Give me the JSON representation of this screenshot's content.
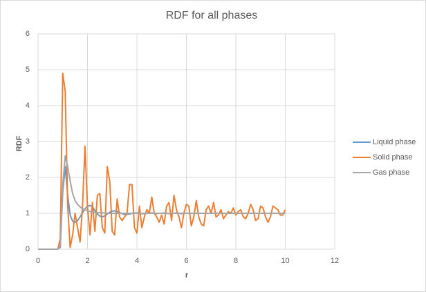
{
  "chart_data": {
    "type": "line",
    "title": "RDF for all phases",
    "x_label": "r",
    "y_label": "RDF",
    "x": [
      0,
      0.1,
      0.2,
      0.3,
      0.4,
      0.5,
      0.6,
      0.7,
      0.8,
      0.9,
      1,
      1.1,
      1.2,
      1.3,
      1.4,
      1.5,
      1.6,
      1.7,
      1.8,
      1.9,
      2,
      2.1,
      2.2,
      2.3,
      2.4,
      2.5,
      2.6,
      2.7,
      2.8,
      2.9,
      3,
      3.1,
      3.2,
      3.3,
      3.4,
      3.5,
      3.6,
      3.7,
      3.8,
      3.9,
      4,
      4.1,
      4.2,
      4.3,
      4.4,
      4.5,
      4.6,
      4.7,
      4.8,
      4.9,
      5,
      5.1,
      5.2,
      5.3,
      5.4,
      5.5,
      5.6,
      5.7,
      5.8,
      5.9,
      6,
      6.1,
      6.2,
      6.3,
      6.4,
      6.5,
      6.6,
      6.7,
      6.8,
      6.9,
      7,
      7.1,
      7.2,
      7.3,
      7.4,
      7.5,
      7.6,
      7.7,
      7.8,
      7.9,
      8,
      8.1,
      8.2,
      8.3,
      8.4,
      8.5,
      8.6,
      8.7,
      8.8,
      8.9,
      9,
      9.1,
      9.2,
      9.3,
      9.4,
      9.5,
      9.6,
      9.7,
      9.8,
      9.9,
      10
    ],
    "series": [
      {
        "name": "Liquid phase",
        "color": "#5b9bd5",
        "values": [
          0,
          0,
          0,
          0,
          0,
          0,
          0,
          0,
          0,
          0.05,
          1.6,
          2.3,
          1.5,
          0.95,
          0.78,
          0.75,
          0.8,
          0.9,
          1.02,
          1.12,
          1.2,
          1.22,
          1.18,
          1.08,
          0.98,
          0.92,
          0.9,
          0.93,
          0.98,
          1.03,
          1.06,
          1.07,
          1.05,
          1.02,
          0.99,
          0.97,
          0.97,
          0.98,
          1,
          1.01,
          1.01,
          1,
          0.99,
          0.99,
          1,
          1.01,
          1.01,
          1,
          0.99,
          1,
          1,
          1.01,
          1,
          0.99,
          1,
          1,
          1.01,
          1,
          0.99,
          1,
          1,
          1,
          1,
          1,
          1,
          1,
          1,
          1,
          1,
          1,
          1,
          1,
          1,
          1,
          1,
          1,
          1,
          1,
          1,
          1,
          1,
          1,
          1,
          1,
          1,
          1,
          1,
          1,
          1,
          1,
          1,
          1,
          1,
          1,
          1,
          1,
          1,
          1,
          1,
          1,
          1
        ]
      },
      {
        "name": "Solid phase",
        "color": "#ed7d31",
        "values": [
          0,
          0,
          0,
          0,
          0,
          0,
          0,
          0,
          0,
          0.3,
          4.9,
          4.4,
          1.2,
          0.05,
          0.4,
          1,
          0.6,
          0.2,
          1.2,
          2.87,
          1.2,
          0.4,
          1.3,
          0.5,
          1.5,
          1.55,
          0.6,
          0.45,
          2.3,
          1.9,
          0.5,
          0.4,
          1.4,
          0.9,
          0.8,
          0.9,
          1,
          1.8,
          1.8,
          0.6,
          0.45,
          1.2,
          0.6,
          0.9,
          1.1,
          1,
          1.45,
          1,
          0.9,
          0.75,
          0.95,
          0.7,
          1.2,
          1.3,
          0.8,
          1.5,
          1.1,
          0.9,
          0.6,
          1,
          1.25,
          1.2,
          0.65,
          0.9,
          1.35,
          0.9,
          0.7,
          0.65,
          1.1,
          1.2,
          1,
          1.3,
          0.9,
          0.95,
          1.1,
          0.85,
          0.95,
          1.05,
          1,
          1.15,
          0.95,
          1.05,
          1.1,
          0.9,
          0.85,
          1,
          1.25,
          1.1,
          0.8,
          0.85,
          1.2,
          1.15,
          0.9,
          0.75,
          0.9,
          1.2,
          1.15,
          1.1,
          0.95,
          0.95,
          1.1
        ]
      },
      {
        "name": "Gas phase",
        "color": "#a5a5a5",
        "values": [
          0,
          0,
          0,
          0,
          0,
          0,
          0,
          0,
          0,
          0.08,
          1.8,
          2.6,
          2.3,
          1.9,
          1.55,
          1.35,
          1.25,
          1.18,
          1.13,
          1.1,
          1.07,
          1.05,
          1.04,
          1.03,
          1.02,
          1.02,
          1.01,
          1.01,
          1,
          1,
          1,
          1,
          1,
          1,
          1,
          1,
          1,
          1,
          1,
          1,
          1,
          1,
          1,
          1,
          1,
          1,
          1,
          1,
          1,
          1,
          1,
          1,
          1,
          1,
          1,
          1,
          1,
          1,
          1,
          1,
          1,
          1,
          1,
          1,
          1,
          1,
          1,
          1,
          1,
          1,
          1,
          1,
          1,
          1,
          1,
          1,
          1,
          1,
          1,
          1,
          1,
          1,
          1,
          1,
          1,
          1,
          1,
          1,
          1,
          1,
          1,
          1,
          1,
          1,
          1,
          1,
          1,
          1,
          1,
          1,
          1
        ]
      }
    ],
    "xlim": [
      0,
      12
    ],
    "xticks": [
      0,
      2,
      4,
      6,
      8,
      10,
      12
    ],
    "ylim": [
      0,
      6
    ],
    "yticks": [
      0,
      1,
      2,
      3,
      4,
      5,
      6
    ],
    "grid": true,
    "legend": "right"
  }
}
